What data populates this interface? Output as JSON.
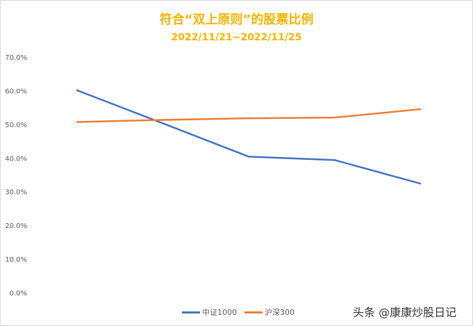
{
  "chart_data": {
    "type": "line",
    "title": "符合“双上原则”的股票比例",
    "subtitle": "2022/11/21~2022/11/25",
    "x": [
      1,
      2,
      3,
      4,
      5
    ],
    "series": [
      {
        "name": "中证1000",
        "color": "#4472c4",
        "values": [
          60.1,
          50.3,
          40.4,
          39.4,
          32.4
        ]
      },
      {
        "name": "沪深300",
        "color": "#ed7d31",
        "values": [
          50.7,
          51.3,
          51.8,
          52.0,
          54.5
        ]
      }
    ],
    "ylim": [
      0,
      70
    ],
    "yticks": [
      "0.0%",
      "10.0%",
      "20.0%",
      "30.0%",
      "40.0%",
      "50.0%",
      "60.0%",
      "70.0%"
    ],
    "xlabel": "",
    "ylabel": "",
    "grid": false,
    "legend": "bottom"
  },
  "watermark": "头条 @康康炒股日记"
}
